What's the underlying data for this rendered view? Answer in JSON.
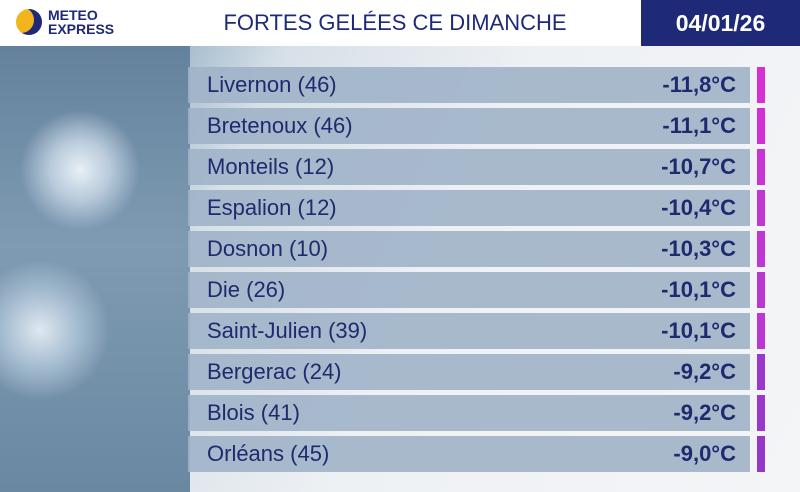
{
  "header": {
    "logo": [
      "METEO",
      "EXPRESS"
    ],
    "title": "FORTES GELÉES CE DIMANCHE",
    "date": "04/01/26"
  },
  "table": {
    "rows": [
      {
        "place": "Livernon (46)",
        "temp": "-11,8°C",
        "color": "#d62fd4"
      },
      {
        "place": "Bretenoux (46)",
        "temp": "-11,1°C",
        "color": "#d22fd6"
      },
      {
        "place": "Monteils (12)",
        "temp": "-10,7°C",
        "color": "#c834d4"
      },
      {
        "place": "Espalion (12)",
        "temp": "-10,4°C",
        "color": "#c236d4"
      },
      {
        "place": "Dosnon (10)",
        "temp": "-10,3°C",
        "color": "#c036d4"
      },
      {
        "place": "Die (26)",
        "temp": "-10,1°C",
        "color": "#bc36d4"
      },
      {
        "place": "Saint-Julien (39)",
        "temp": "-10,1°C",
        "color": "#bc36d4"
      },
      {
        "place": "Bergerac (24)",
        "temp": "-9,2°C",
        "color": "#9a38cc"
      },
      {
        "place": "Blois (41)",
        "temp": "-9,2°C",
        "color": "#9a38cc"
      },
      {
        "place": "Orléans (45)",
        "temp": "-9,0°C",
        "color": "#9438ca"
      }
    ]
  }
}
